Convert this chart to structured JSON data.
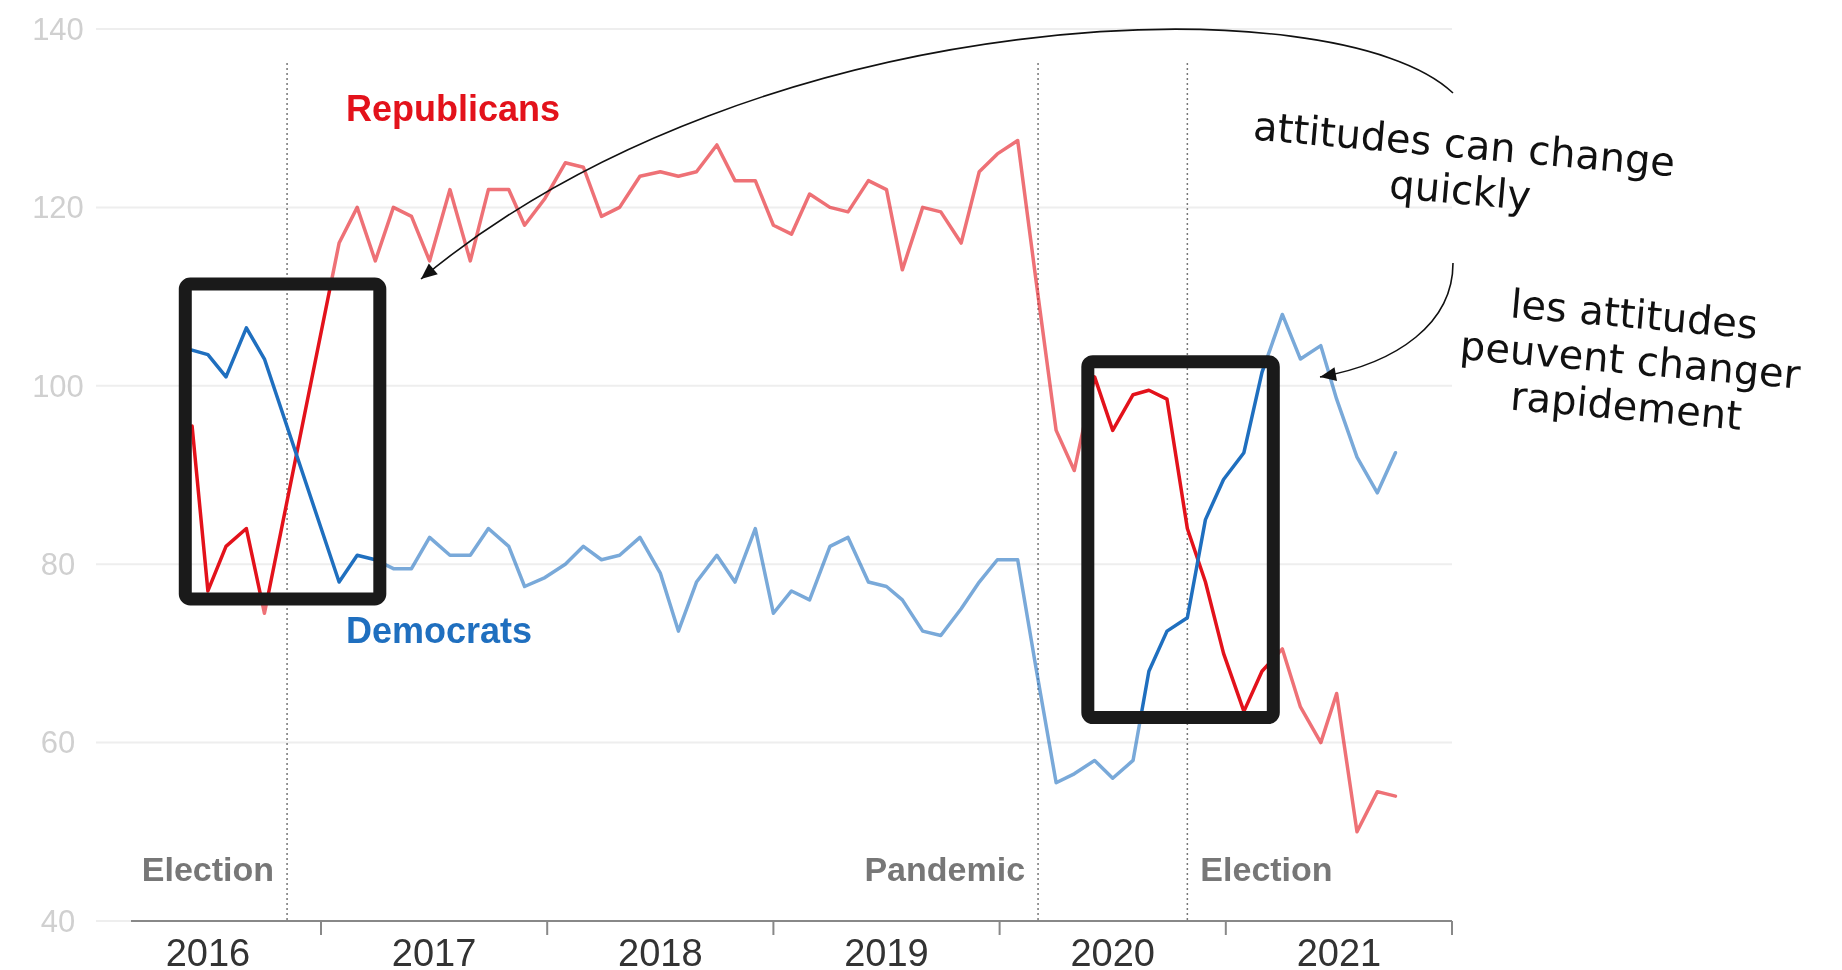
{
  "chart_data": {
    "type": "line",
    "x": [
      2016.43,
      2016.5,
      2016.58,
      2016.67,
      2016.75,
      2017.08,
      2017.16,
      2017.24,
      2017.32,
      2017.4,
      2017.48,
      2017.57,
      2017.66,
      2017.74,
      2017.83,
      2017.9,
      2017.99,
      2018.08,
      2018.16,
      2018.24,
      2018.32,
      2018.41,
      2018.5,
      2018.58,
      2018.66,
      2018.75,
      2018.83,
      2018.92,
      2019.0,
      2019.08,
      2019.16,
      2019.25,
      2019.33,
      2019.42,
      2019.5,
      2019.57,
      2019.66,
      2019.74,
      2019.83,
      2019.91,
      2019.99,
      2020.08,
      2020.16,
      2020.25,
      2020.33,
      2020.42,
      2020.5,
      2020.59,
      2020.66,
      2020.74,
      2020.83,
      2020.91,
      2020.99,
      2021.08,
      2021.16,
      2021.25,
      2021.33,
      2021.42,
      2021.49,
      2021.58,
      2021.67,
      2021.75
    ],
    "series": [
      {
        "name": "Republicans",
        "color": "#e3121b",
        "values": [
          95.5,
          77,
          82,
          84,
          74.5,
          116,
          120,
          114,
          120,
          119,
          114,
          122,
          114,
          122,
          122,
          118,
          121,
          125,
          124.5,
          119,
          120,
          123.5,
          124,
          123.5,
          124,
          127,
          123,
          123,
          118,
          117,
          121.5,
          120,
          119.5,
          123,
          122,
          113,
          120,
          119.5,
          116,
          124,
          126,
          127.5,
          112,
          95,
          90.5,
          101,
          95,
          99,
          99.5,
          98.5,
          84,
          78,
          70,
          63.5,
          68,
          70.5,
          64,
          60,
          65.5,
          50,
          54.5,
          54
        ]
      },
      {
        "name": "Democrats",
        "color": "#1f6fbf",
        "values": [
          104,
          103.5,
          101,
          106.5,
          103,
          78,
          81,
          80.5,
          79.5,
          79.5,
          83,
          81,
          81,
          84,
          82,
          77.5,
          78.5,
          80,
          82,
          80.5,
          81,
          83,
          79,
          72.5,
          78,
          81,
          78,
          84,
          74.5,
          77,
          76,
          82,
          83,
          78,
          77.5,
          76,
          72.5,
          72,
          75,
          78,
          80.5,
          80.5,
          68.5,
          55.5,
          56.5,
          58,
          56,
          58,
          68,
          72.5,
          74,
          85,
          89.5,
          92.5,
          101.5,
          108,
          103,
          104.5,
          98.5,
          92,
          88,
          92.5
        ]
      }
    ],
    "xlim": [
      2016.16,
      2022
    ],
    "xticks": [
      {
        "value": 2016.5,
        "label": "2016"
      },
      {
        "value": 2017,
        "label": null
      },
      {
        "value": 2017.5,
        "label": "2017"
      },
      {
        "value": 2018,
        "label": null
      },
      {
        "value": 2018.5,
        "label": "2018"
      },
      {
        "value": 2019,
        "label": null
      },
      {
        "value": 2019.5,
        "label": "2019"
      },
      {
        "value": 2020,
        "label": null
      },
      {
        "value": 2020.5,
        "label": "2020"
      },
      {
        "value": 2021,
        "label": null
      },
      {
        "value": 2021.5,
        "label": "2021"
      },
      {
        "value": 2022,
        "label": null
      }
    ],
    "ylim": [
      40,
      140
    ],
    "yticks": [
      40,
      60,
      80,
      100,
      120,
      140
    ],
    "grid": "y",
    "ref_lines": [
      {
        "axis": "x",
        "value": 2016.85,
        "label": "Election",
        "line_style": "dotted"
      },
      {
        "axis": "x",
        "value": 2020.17,
        "label": "Pandemic",
        "line_style": "dotted"
      },
      {
        "axis": "x",
        "value": 2020.83,
        "label": "Election",
        "line_style": "dotted"
      }
    ],
    "annotations": [
      "attitudes can change quickly",
      "les attitudes peuvent changer rapidement"
    ]
  }
}
